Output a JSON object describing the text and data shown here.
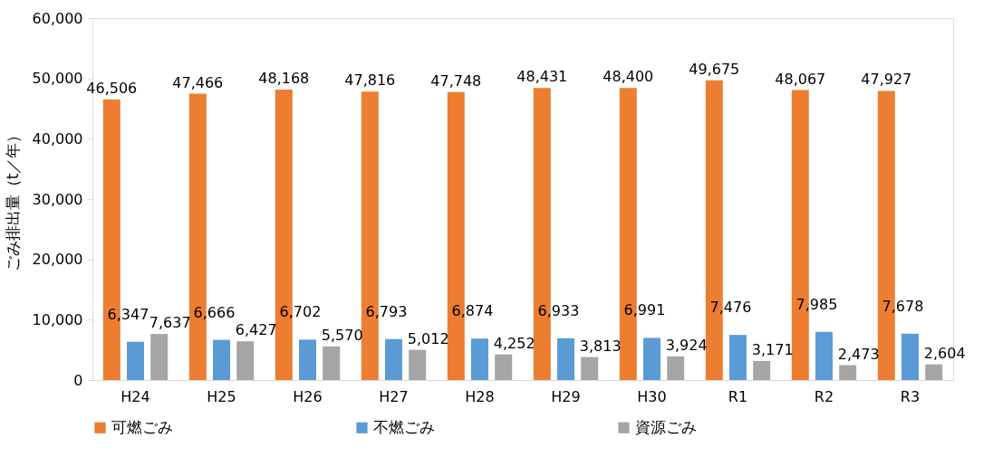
{
  "chart_data": {
    "type": "bar",
    "ylabel": "ごみ排出量（t／年）",
    "categories": [
      "H24",
      "H25",
      "H26",
      "H27",
      "H28",
      "H29",
      "H30",
      "R1",
      "R2",
      "R3"
    ],
    "series": [
      {
        "name": "可燃ごみ",
        "color": "#ed7d31",
        "values": [
          46506,
          47466,
          48168,
          47816,
          47748,
          48431,
          48400,
          49675,
          48067,
          47927
        ],
        "value_labels": [
          "46,506",
          "47,466",
          "48,168",
          "47,816",
          "47,748",
          "48,431",
          "48,400",
          "49,675",
          "48,067",
          "47,927"
        ]
      },
      {
        "name": "不燃ごみ",
        "color": "#5b9bd5",
        "values": [
          6347,
          6666,
          6702,
          6793,
          6874,
          6933,
          6991,
          7476,
          7985,
          7678
        ],
        "value_labels": [
          "6,347",
          "6,666",
          "6,702",
          "6,793",
          "6,874",
          "6,933",
          "6,991",
          "7,476",
          "7,985",
          "7,678"
        ]
      },
      {
        "name": "資源ごみ",
        "color": "#a5a5a5",
        "values": [
          7637,
          6427,
          5570,
          5012,
          4252,
          3813,
          3924,
          3171,
          2473,
          2604
        ],
        "value_labels": [
          "7,637",
          "6,427",
          "5,570",
          "5,012",
          "4,252",
          "3,813",
          "3,924",
          "3,171",
          "2,473",
          "2,604"
        ]
      }
    ],
    "ylim": [
      0,
      60000
    ],
    "yticks": [
      0,
      {
        "value": 10000,
        "label": "10,000"
      },
      {
        "value": 20000,
        "label": "20,000"
      },
      {
        "value": 30000,
        "label": "30,000"
      },
      {
        "value": 40000,
        "label": "40,000"
      },
      {
        "value": 50000,
        "label": "50,000"
      },
      {
        "value": 60000,
        "label": "60,000"
      }
    ],
    "grid": false,
    "legend": "bottom"
  }
}
